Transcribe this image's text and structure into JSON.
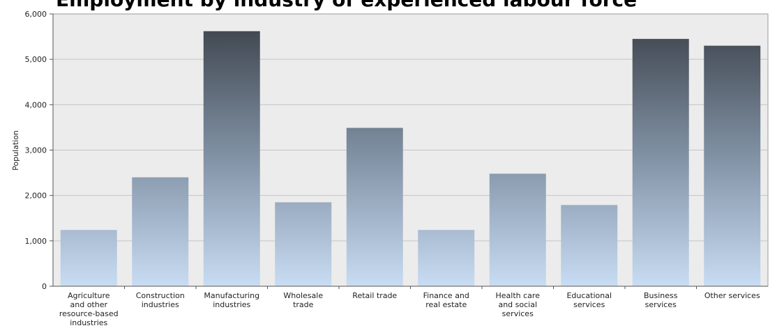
{
  "chart_data": {
    "type": "bar",
    "title": "Employment by industry of experienced labour force",
    "xlabel": "",
    "ylabel": "Population",
    "ylim": [
      0,
      6000
    ],
    "yticks": [
      0,
      1000,
      2000,
      3000,
      4000,
      5000,
      6000
    ],
    "ytick_labels": [
      "0",
      "1,000",
      "2,000",
      "3,000",
      "4,000",
      "5,000",
      "6,000"
    ],
    "grid": true,
    "legend": "none",
    "categories": [
      "Agriculture and other resource-based industries",
      "Construction industries",
      "Manufacturing industries",
      "Wholesale trade",
      "Retail trade",
      "Finance and real estate",
      "Health care and social services",
      "Educational services",
      "Business services",
      "Other services"
    ],
    "category_lines": [
      [
        "Agriculture",
        "and other",
        "resource-based",
        "industries"
      ],
      [
        "Construction",
        "industries"
      ],
      [
        "Manufacturing",
        "industries"
      ],
      [
        "Wholesale",
        "trade"
      ],
      [
        "Retail trade"
      ],
      [
        "Finance and",
        "real estate"
      ],
      [
        "Health care",
        "and social",
        "services"
      ],
      [
        "Educational",
        "services"
      ],
      [
        "Business",
        "services"
      ],
      [
        "Other services"
      ]
    ],
    "values": [
      1240,
      2400,
      5620,
      1850,
      3490,
      1240,
      2480,
      1790,
      5450,
      5300
    ],
    "colors": {
      "plot_background": "#ececec",
      "gridline": "#c4c4c4",
      "bar_top": "#3a3f47",
      "bar_mid": "#7e8ea1",
      "bar_bottom": "#c8dcf3",
      "axis": "#555555"
    }
  }
}
